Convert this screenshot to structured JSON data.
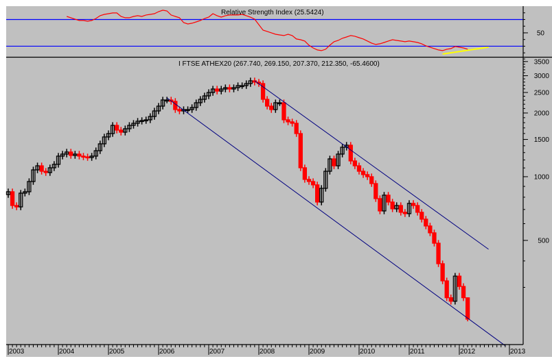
{
  "chart_data": [
    {
      "type": "line",
      "title": "Relative Strength Index (25.5424)",
      "ylim": [
        14,
        90
      ],
      "yticks": [
        50
      ],
      "levels": [
        70,
        30
      ],
      "start": "2004-02",
      "values": [
        74.6,
        72.6,
        70.5,
        68.5,
        68.5,
        67.4,
        68.5,
        71.5,
        75.7,
        77.7,
        78.7,
        79.8,
        79.8,
        74.6,
        72.6,
        72.6,
        74.6,
        75.7,
        74.6,
        76.7,
        77.7,
        78.7,
        81.8,
        83.9,
        82.8,
        76.7,
        74.6,
        72.6,
        65.4,
        63.3,
        64.4,
        66.4,
        68.5,
        71.5,
        73.6,
        78.7,
        75.7,
        73.6,
        75.7,
        76.7,
        76.7,
        76.7,
        77.7,
        75.7,
        73.6,
        70.5,
        62.3,
        54.1,
        52.1,
        50,
        47.9,
        46.9,
        45.9,
        47.9,
        45.9,
        40.8,
        39.7,
        37.7,
        31.5,
        27.4,
        24.4,
        23.3,
        25.4,
        31.5,
        36.7,
        38.7,
        41.8,
        43.8,
        45.9,
        44.9,
        42.8,
        40.8,
        37.7,
        34.6,
        32.6,
        33.6,
        35.6,
        37.7,
        39.7,
        38.7,
        37.7,
        36.7,
        37.7,
        36.7,
        35.6,
        33.6,
        30.5,
        28.5,
        26.4,
        24.4,
        23.3,
        25.4,
        26.4,
        29.5,
        28.5,
        27.4,
        25.5424
      ],
      "trendline": {
        "from": [
          "2011-09",
          18.2
        ],
        "to": [
          "2012-08",
          28.5
        ],
        "color": "#ffff00"
      },
      "colors": {
        "line": "#ff0000",
        "levels": "#0000ff"
      }
    },
    {
      "type": "candlestick",
      "title": "I FTSE ATHEX20 (267.740, 269.150, 207.370, 212.350, -65.4600)",
      "scale": "log",
      "ylim": [
        161,
        3629
      ],
      "yticks": [
        500,
        1000,
        1500,
        2000,
        2500,
        3000,
        3500
      ],
      "xticks": [
        "2003",
        "2004",
        "2005",
        "2006",
        "2007",
        "2008",
        "2009",
        "2010",
        "2011",
        "2012",
        "2013"
      ],
      "start": "2003-01",
      "closes": [
        849,
        731,
        720,
        836,
        849,
        949,
        1077,
        1126,
        1061,
        1046,
        1102,
        1144,
        1251,
        1279,
        1308,
        1260,
        1279,
        1251,
        1241,
        1232,
        1251,
        1327,
        1430,
        1541,
        1599,
        1748,
        1660,
        1623,
        1685,
        1748,
        1788,
        1829,
        1843,
        1857,
        1926,
        2045,
        2155,
        2304,
        2304,
        2270,
        2076,
        2045,
        2076,
        2076,
        2123,
        2236,
        2321,
        2409,
        2500,
        2596,
        2538,
        2596,
        2635,
        2596,
        2635,
        2694,
        2694,
        2755,
        2839,
        2797,
        2755,
        2321,
        2155,
        2076,
        2236,
        2236,
        1857,
        1816,
        1788,
        1599,
        1102,
        971,
        949,
        915,
        759,
        881,
        1061,
        1214,
        1126,
        1279,
        1378,
        1409,
        1187,
        1126,
        1061,
        1023,
        1000,
        928,
        788,
        689,
        818,
        759,
        705,
        731,
        679,
        669,
        748,
        731,
        679,
        630,
        585,
        543,
        485,
        388,
        322,
        268,
        258,
        339,
        303,
        268,
        212.35
      ],
      "last": {
        "open": 267.74,
        "high": 269.15,
        "low": 207.37,
        "close": 212.35,
        "change": -65.46
      },
      "channel": [
        {
          "from": [
            "2007-12",
            2839
          ],
          "to": [
            "2012-08",
            454
          ]
        },
        {
          "from": [
            "2006-03",
            2357
          ],
          "to": [
            "2012-12",
            159
          ]
        }
      ],
      "colors": {
        "up": "#000000",
        "down": "#ff0000",
        "channel": "#000080",
        "background": "#c0c0c0"
      }
    }
  ]
}
